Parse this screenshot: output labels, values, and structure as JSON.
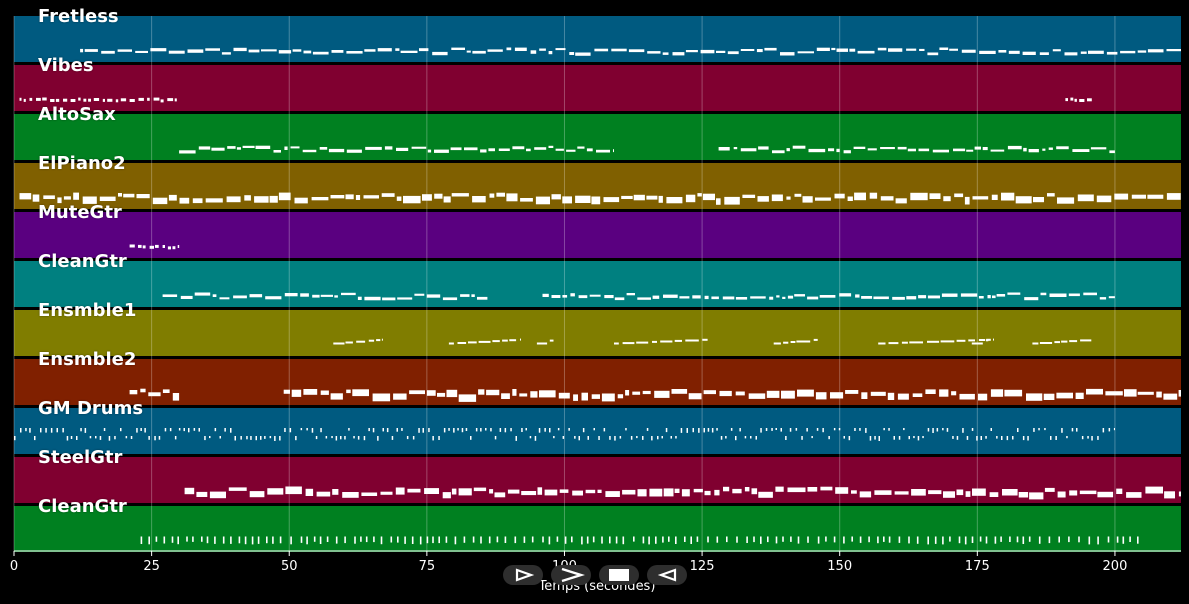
{
  "chart_data": {
    "type": "piano-roll",
    "xlabel": "Temps (secondes)",
    "xlim": [
      0,
      212
    ],
    "x_ticks": [
      0,
      25,
      50,
      75,
      100,
      125,
      150,
      175,
      200
    ],
    "tracks": [
      {
        "name": "Fretless",
        "color": "#005a80",
        "segments": [
          [
            12,
            212
          ]
        ],
        "style": "line"
      },
      {
        "name": "Vibes",
        "color": "#800030",
        "segments": [
          [
            1,
            30
          ],
          [
            191,
            196
          ]
        ],
        "style": "dots"
      },
      {
        "name": "AltoSax",
        "color": "#008020",
        "segments": [
          [
            30,
            109
          ],
          [
            128,
            200
          ]
        ],
        "style": "line"
      },
      {
        "name": "ElPiano2",
        "color": "#806000",
        "segments": [
          [
            1,
            212
          ]
        ],
        "style": "blocks"
      },
      {
        "name": "MuteGtr",
        "color": "#5a0080",
        "segments": [
          [
            21,
            30
          ]
        ],
        "style": "dots"
      },
      {
        "name": "CleanGtr",
        "color": "#008080",
        "segments": [
          [
            27,
            86
          ],
          [
            96,
            200
          ]
        ],
        "style": "line"
      },
      {
        "name": "Ensmble1",
        "color": "#807d00",
        "segments": [
          [
            58,
            67
          ],
          [
            79,
            92
          ],
          [
            95,
            98
          ],
          [
            109,
            126
          ],
          [
            138,
            146
          ],
          [
            157,
            178
          ],
          [
            174,
            177
          ],
          [
            185,
            196
          ]
        ],
        "style": "phrases"
      },
      {
        "name": "Ensmble2",
        "color": "#802000",
        "segments": [
          [
            21,
            30
          ],
          [
            49,
            212
          ]
        ],
        "style": "blocks"
      },
      {
        "name": "GM Drums",
        "color": "#005a80",
        "segments": [
          [
            0,
            200
          ]
        ],
        "style": "drums"
      },
      {
        "name": "SteelGtr",
        "color": "#800030",
        "segments": [
          [
            31,
            212
          ]
        ],
        "style": "blocks"
      },
      {
        "name": "CleanGtr",
        "color": "#008020",
        "segments": [
          [
            23,
            205
          ]
        ],
        "style": "ticks"
      }
    ]
  },
  "controls": {
    "play_icon": "play-outline-icon",
    "forward_icon": "forward-icon",
    "stop_icon": "stop-icon",
    "back_icon": "back-icon"
  }
}
